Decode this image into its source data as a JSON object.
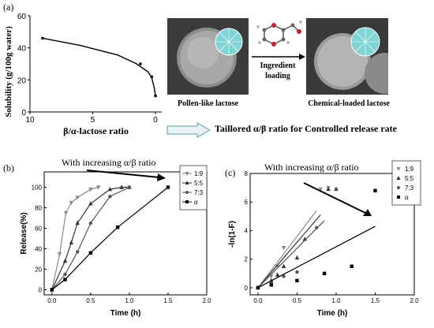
{
  "panels": {
    "a": {
      "label": "(a)"
    },
    "b": {
      "label": "(b)"
    },
    "c": {
      "label": "(c)"
    }
  },
  "chart_data": [
    {
      "id": "a",
      "type": "line",
      "title": "",
      "xlabel": "β/α-lactose ratio",
      "ylabel": "Solubility (g/100g water)",
      "xlim": [
        10,
        -0.5
      ],
      "ylim": [
        0,
        60
      ],
      "x_reversed": true,
      "xticks": [
        10,
        5,
        0
      ],
      "xtick_labels": [
        "10",
        "5",
        "0"
      ],
      "yticks": [
        0,
        20,
        40,
        60
      ],
      "line": {
        "x": [
          9,
          6,
          3,
          1.5,
          0.6,
          0.3,
          0.1,
          0.0
        ],
        "y": [
          46,
          41.5,
          35.5,
          30,
          25,
          21.5,
          15,
          10
        ]
      },
      "markers": {
        "x": [
          9,
          1.2,
          0.3,
          0.0
        ],
        "y": [
          46,
          30,
          22,
          10
        ]
      }
    },
    {
      "id": "b",
      "type": "line",
      "title": "",
      "xlabel": "Time (h)",
      "ylabel": "Release(%)",
      "xlim": [
        -0.1,
        2.0
      ],
      "ylim": [
        -5,
        115
      ],
      "xticks": [
        0.0,
        0.5,
        1.0,
        1.5,
        2.0
      ],
      "xtick_labels": [
        "0.0",
        "0.5",
        "1.0",
        "1.5",
        "2.0"
      ],
      "yticks": [
        0,
        20,
        40,
        60,
        80,
        100
      ],
      "legend": {
        "placement": "top-right"
      },
      "series": [
        {
          "name": "1:9",
          "marker": "triangle-down",
          "x": [
            0,
            0.1,
            0.18,
            0.25,
            0.33,
            0.5,
            0.6
          ],
          "y": [
            0,
            35,
            75,
            85,
            90,
            98,
            100
          ]
        },
        {
          "name": "5:5",
          "marker": "triangle-up",
          "x": [
            0,
            0.17,
            0.25,
            0.33,
            0.5,
            0.75,
            0.9,
            1.0
          ],
          "y": [
            0,
            28,
            46,
            65,
            84,
            98,
            100,
            100
          ]
        },
        {
          "name": "7:3",
          "marker": "circle",
          "x": [
            0,
            0.17,
            0.33,
            0.5,
            0.75,
            1.0
          ],
          "y": [
            0,
            15,
            37,
            65,
            91,
            100
          ]
        },
        {
          "name": "α",
          "marker": "square",
          "x": [
            0,
            0.17,
            0.5,
            0.85,
            1.5
          ],
          "y": [
            0,
            10,
            36,
            61,
            100
          ]
        }
      ]
    },
    {
      "id": "c",
      "type": "scatter",
      "title": "",
      "xlabel": "Time (h)",
      "ylabel": "-ln(1-F)",
      "xlim": [
        -0.1,
        2.0
      ],
      "ylim": [
        -0.5,
        8
      ],
      "xticks": [
        0.0,
        0.5,
        1.0,
        1.5,
        2.0
      ],
      "xtick_labels": [
        "0.0",
        "0.5",
        "1.0",
        "1.5",
        "2.0"
      ],
      "yticks": [
        0,
        2,
        4,
        6,
        8
      ],
      "legend": {
        "placement": "top-right"
      },
      "series": [
        {
          "name": "1:9",
          "marker": "triangle-down",
          "x": [
            0,
            0.17,
            0.25,
            0.33,
            0.8,
            0.9
          ],
          "y": [
            0,
            0.8,
            1.5,
            2.8,
            6.9,
            7.0
          ],
          "fit": {
            "x": [
              0,
              0.75
            ],
            "y": [
              0,
              5.4
            ]
          }
        },
        {
          "name": "5:5",
          "marker": "triangle-up",
          "x": [
            0,
            0.17,
            0.25,
            0.33,
            0.5,
            0.6,
            0.9,
            1.0
          ],
          "y": [
            0,
            0.5,
            0.9,
            1.5,
            2.1,
            3.4,
            6.9,
            6.9
          ],
          "fit": {
            "x": [
              0,
              0.8
            ],
            "y": [
              0,
              5.1
            ]
          }
        },
        {
          "name": "7:3",
          "marker": "circle",
          "x": [
            0,
            0.17,
            0.33,
            0.5,
            0.75,
            1.0
          ],
          "y": [
            0,
            0.3,
            0.8,
            1.1,
            4.2,
            6.9
          ],
          "fit": {
            "x": [
              0,
              0.85
            ],
            "y": [
              0,
              4.7
            ]
          }
        },
        {
          "name": "α",
          "marker": "square",
          "x": [
            0,
            0.17,
            0.5,
            0.85,
            1.2,
            1.5
          ],
          "y": [
            0,
            0.2,
            0.5,
            1.0,
            1.5,
            6.8
          ],
          "fit": {
            "x": [
              0,
              1.5
            ],
            "y": [
              0,
              4.3
            ]
          }
        }
      ]
    }
  ],
  "images": {
    "left_caption": "Pollen-like lactose",
    "right_caption": "Chemical-loaded lactose",
    "arrow_label_line1": "Ingredient",
    "arrow_label_line2": "loading"
  },
  "banner": {
    "text": "Taillored α/β ratio for Controlled release rate"
  },
  "annotations": {
    "b_trend": "With increasing α/β ratio",
    "c_trend": "With increasing α/β ratio"
  },
  "colors": {
    "series_1_9": "#8a8a8a",
    "series_5_5": "#333333",
    "series_7_3": "#555555",
    "series_alpha": "#000000",
    "sem_bg": "#4a4a4a",
    "halo": "#7fd4d4"
  }
}
